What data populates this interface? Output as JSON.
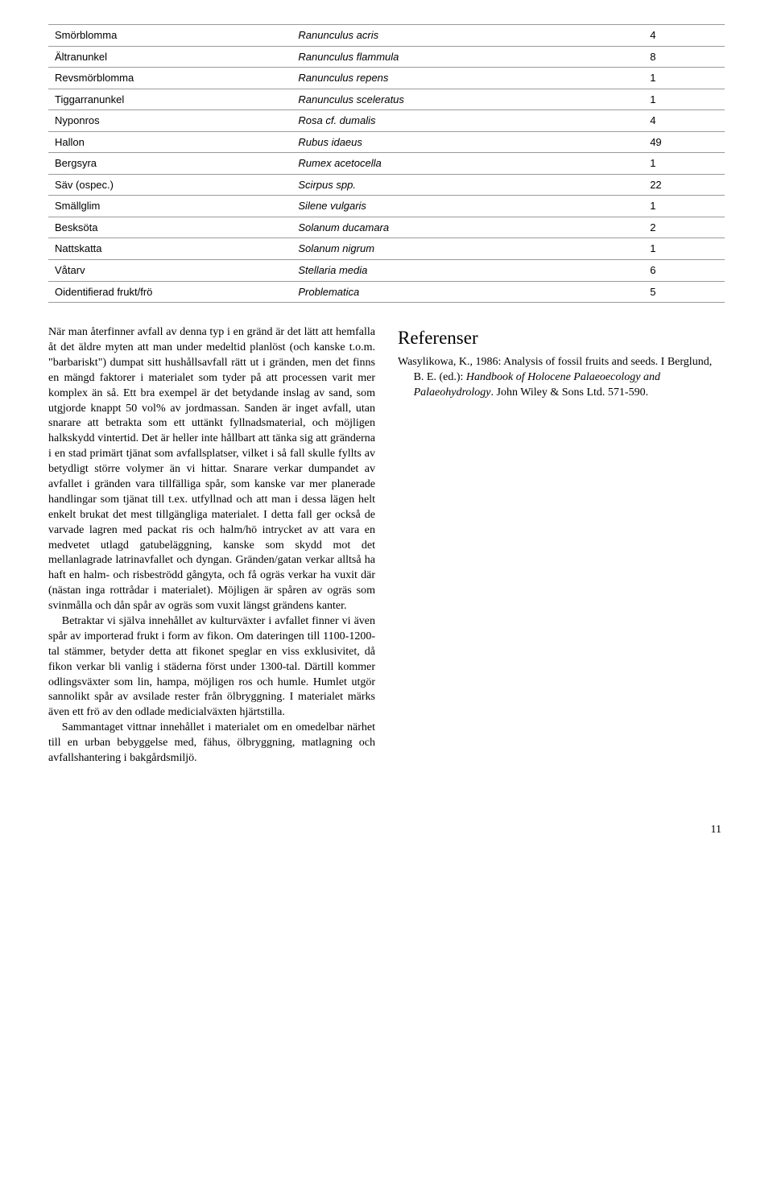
{
  "table": {
    "rows": [
      {
        "sv": "Smörblomma",
        "lat": "Ranunculus acris",
        "n": "4"
      },
      {
        "sv": "Ältranunkel",
        "lat": "Ranunculus flammula",
        "n": "8"
      },
      {
        "sv": "Revsmörblomma",
        "lat": "Ranunculus repens",
        "n": "1"
      },
      {
        "sv": "Tiggarranunkel",
        "lat": "Ranunculus sceleratus",
        "n": "1"
      },
      {
        "sv": "Nyponros",
        "lat": "Rosa cf. dumalis",
        "n": "4"
      },
      {
        "sv": "Hallon",
        "lat": "Rubus idaeus",
        "n": "49"
      },
      {
        "sv": "Bergsyra",
        "lat": "Rumex acetocella",
        "n": "1"
      },
      {
        "sv": "Säv (ospec.)",
        "lat": "Scirpus spp.",
        "n": "22"
      },
      {
        "sv": "Smällglim",
        "lat": "Silene vulgaris",
        "n": "1"
      },
      {
        "sv": "Besksöta",
        "lat": "Solanum ducamara",
        "n": "2"
      },
      {
        "sv": "Nattskatta",
        "lat": "Solanum nigrum",
        "n": "1"
      },
      {
        "sv": "Våtarv",
        "lat": "Stellaria media",
        "n": "6"
      },
      {
        "sv": "Oidentifierad frukt/frö",
        "lat": "Problematica",
        "n": "5"
      }
    ]
  },
  "body": {
    "p1": "När man återfinner avfall av denna typ i en gränd är det lätt att hemfalla åt det äldre myten att man under medeltid planlöst (och kanske t.o.m. \"barbariskt\") dumpat sitt hushållsavfall rätt ut i gränden, men det finns en mängd faktorer i materialet som tyder på att processen varit mer komplex än så. Ett bra exempel är det betydande inslag av sand, som utgjorde knappt 50 vol% av jordmassan. Sanden är inget avfall, utan snarare att betrakta som ett uttänkt fyllnadsmaterial, och möjligen halkskydd vintertid. Det är heller inte hållbart att tänka sig att gränderna i en stad primärt tjänat som avfallsplatser, vilket i så fall skulle fyllts av betydligt större volymer än vi hittar. Snarare verkar dumpandet av avfallet i gränden vara tillfälliga spår, som kanske var mer planerade handlingar som tjänat till t.ex. utfyllnad och att man i dessa lägen helt enkelt brukat det mest tillgängliga materialet. I detta fall ger också de varvade lagren med packat ris och halm/hö intrycket av att vara en medvetet utlagd gatubeläggning, kanske som skydd mot det mellanlagrade latrinavfallet och dyngan. Gränden/gatan verkar alltså ha haft en halm- och risbeströdd gångyta, och få ogräs verkar ha vuxit där (nästan inga rottrådar i materialet). Möjligen är spåren av ogräs som svinmålla och dån spår av ogräs som vuxit längst grändens kanter.",
    "p2": "Betraktar vi själva innehållet av kulturväxter i avfallet finner vi även spår av importerad frukt i form av fikon. Om dateringen till 1100-1200-tal stämmer, betyder detta att fikonet speglar en viss exklusivitet, då fikon verkar bli vanlig i städerna först under 1300-tal. Därtill kommer odlingsväxter som lin, hampa, möjligen ros och humle. Humlet utgör sannolikt spår av avsilade rester från ölbryggning. I materialet märks även ett frö av den odlade medicialväxten hjärtstilla.",
    "p3": "Sammantaget vittnar innehållet i materialet om en omedelbar närhet till en urban bebyggelse med, fähus, ölbryggning, matlagning och avfallshantering i bakgårdsmiljö."
  },
  "references": {
    "title": "Referenser",
    "entry_prefix": "Wasylikowa, K., 1986: Analysis of fossil fruits and seeds. I Berglund, B. E. (ed.): ",
    "entry_italic": "Handbook of Holocene Palaeoecology and Palaeohydrology",
    "entry_suffix": ". John Wiley & Sons Ltd. 571-590."
  },
  "page_number": "11"
}
